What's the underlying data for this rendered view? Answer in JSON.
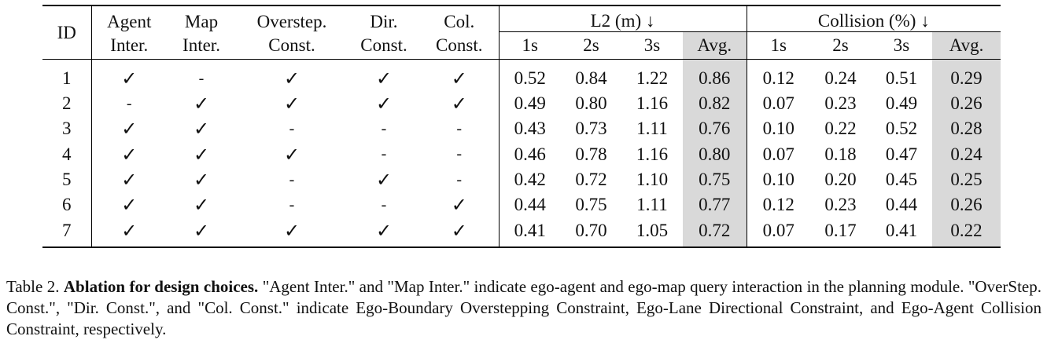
{
  "table": {
    "header": {
      "id": "ID",
      "agent_inter_1": "Agent",
      "agent_inter_2": "Inter.",
      "map_inter_1": "Map",
      "map_inter_2": "Inter.",
      "overstep_1": "Overstep.",
      "overstep_2": "Const.",
      "dir_1": "Dir.",
      "dir_2": "Const.",
      "col_1": "Col.",
      "col_2": "Const.",
      "l2_group": "L2 (m) ↓",
      "collision_group": "Collision (%) ↓",
      "sub_1s": "1s",
      "sub_2s": "2s",
      "sub_3s": "3s",
      "sub_avg": "Avg."
    },
    "rows": [
      {
        "id": "1",
        "agent": "✓",
        "map": "-",
        "overstep": "✓",
        "dir": "✓",
        "col": "✓",
        "l2_1s": "0.52",
        "l2_2s": "0.84",
        "l2_3s": "1.22",
        "l2_avg": "0.86",
        "c_1s": "0.12",
        "c_2s": "0.24",
        "c_3s": "0.51",
        "c_avg": "0.29"
      },
      {
        "id": "2",
        "agent": "-",
        "map": "✓",
        "overstep": "✓",
        "dir": "✓",
        "col": "✓",
        "l2_1s": "0.49",
        "l2_2s": "0.80",
        "l2_3s": "1.16",
        "l2_avg": "0.82",
        "c_1s": "0.07",
        "c_2s": "0.23",
        "c_3s": "0.49",
        "c_avg": "0.26"
      },
      {
        "id": "3",
        "agent": "✓",
        "map": "✓",
        "overstep": "-",
        "dir": "-",
        "col": "-",
        "l2_1s": "0.43",
        "l2_2s": "0.73",
        "l2_3s": "1.11",
        "l2_avg": "0.76",
        "c_1s": "0.10",
        "c_2s": "0.22",
        "c_3s": "0.52",
        "c_avg": "0.28"
      },
      {
        "id": "4",
        "agent": "✓",
        "map": "✓",
        "overstep": "✓",
        "dir": "-",
        "col": "-",
        "l2_1s": "0.46",
        "l2_2s": "0.78",
        "l2_3s": "1.16",
        "l2_avg": "0.80",
        "c_1s": "0.07",
        "c_2s": "0.18",
        "c_3s": "0.47",
        "c_avg": "0.24"
      },
      {
        "id": "5",
        "agent": "✓",
        "map": "✓",
        "overstep": "-",
        "dir": "✓",
        "col": "-",
        "l2_1s": "0.42",
        "l2_2s": "0.72",
        "l2_3s": "1.10",
        "l2_avg": "0.75",
        "c_1s": "0.10",
        "c_2s": "0.20",
        "c_3s": "0.45",
        "c_avg": "0.25"
      },
      {
        "id": "6",
        "agent": "✓",
        "map": "✓",
        "overstep": "-",
        "dir": "-",
        "col": "✓",
        "l2_1s": "0.44",
        "l2_2s": "0.75",
        "l2_3s": "1.11",
        "l2_avg": "0.77",
        "c_1s": "0.12",
        "c_2s": "0.23",
        "c_3s": "0.44",
        "c_avg": "0.26"
      },
      {
        "id": "7",
        "agent": "✓",
        "map": "✓",
        "overstep": "✓",
        "dir": "✓",
        "col": "✓",
        "l2_1s": "0.41",
        "l2_2s": "0.70",
        "l2_3s": "1.05",
        "l2_avg": "0.72",
        "c_1s": "0.07",
        "c_2s": "0.17",
        "c_3s": "0.41",
        "c_avg": "0.22"
      }
    ]
  },
  "caption": {
    "label": "Table 2.",
    "title": "Ablation for design choices.",
    "text": "\"Agent Inter.\" and \"Map Inter.\" indicate ego-agent and ego-map query interaction in the planning module. \"OverStep. Const.\", \"Dir. Const.\", and \"Col. Const.\" indicate Ego-Boundary Overstepping Constraint, Ego-Lane Directional Constraint, and Ego-Agent Collision Constraint, respectively."
  },
  "colors": {
    "avg_highlight": "#d9d9d9",
    "rule": "#000000"
  }
}
